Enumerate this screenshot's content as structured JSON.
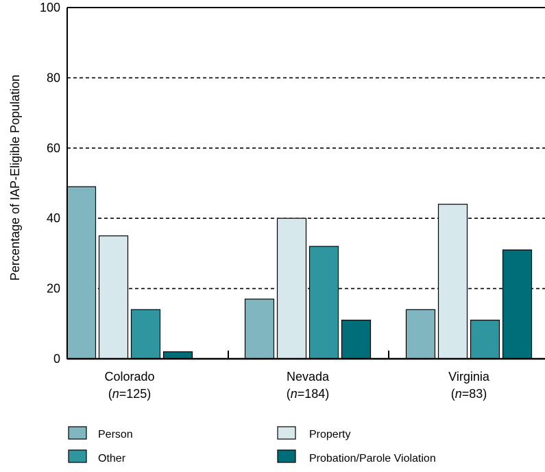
{
  "chart_data": {
    "type": "bar",
    "categories": [
      "Colorado",
      "Nevada",
      "Virginia"
    ],
    "category_sublabels": [
      {
        "var": "n",
        "rest": "=125"
      },
      {
        "var": "n",
        "rest": "=184"
      },
      {
        "var": "n",
        "rest": "=83"
      }
    ],
    "series": [
      {
        "name": "Person",
        "color": "#7fb6bf",
        "values": [
          49,
          17,
          14
        ]
      },
      {
        "name": "Property",
        "color": "#d6e8ec",
        "values": [
          35,
          40,
          44
        ]
      },
      {
        "name": "Other",
        "color": "#2f96a0",
        "values": [
          14,
          32,
          11
        ]
      },
      {
        "name": "Probation/Parole Violation",
        "color": "#006e78",
        "values": [
          2,
          11,
          31
        ]
      }
    ],
    "ylabel": "Percentage of IAP-Eligible Population",
    "xlabel": "",
    "ylim": [
      0,
      100
    ],
    "yticks": [
      0,
      20,
      40,
      60,
      80,
      100
    ],
    "grid": "horizontal dashed",
    "legend": "bottom"
  }
}
